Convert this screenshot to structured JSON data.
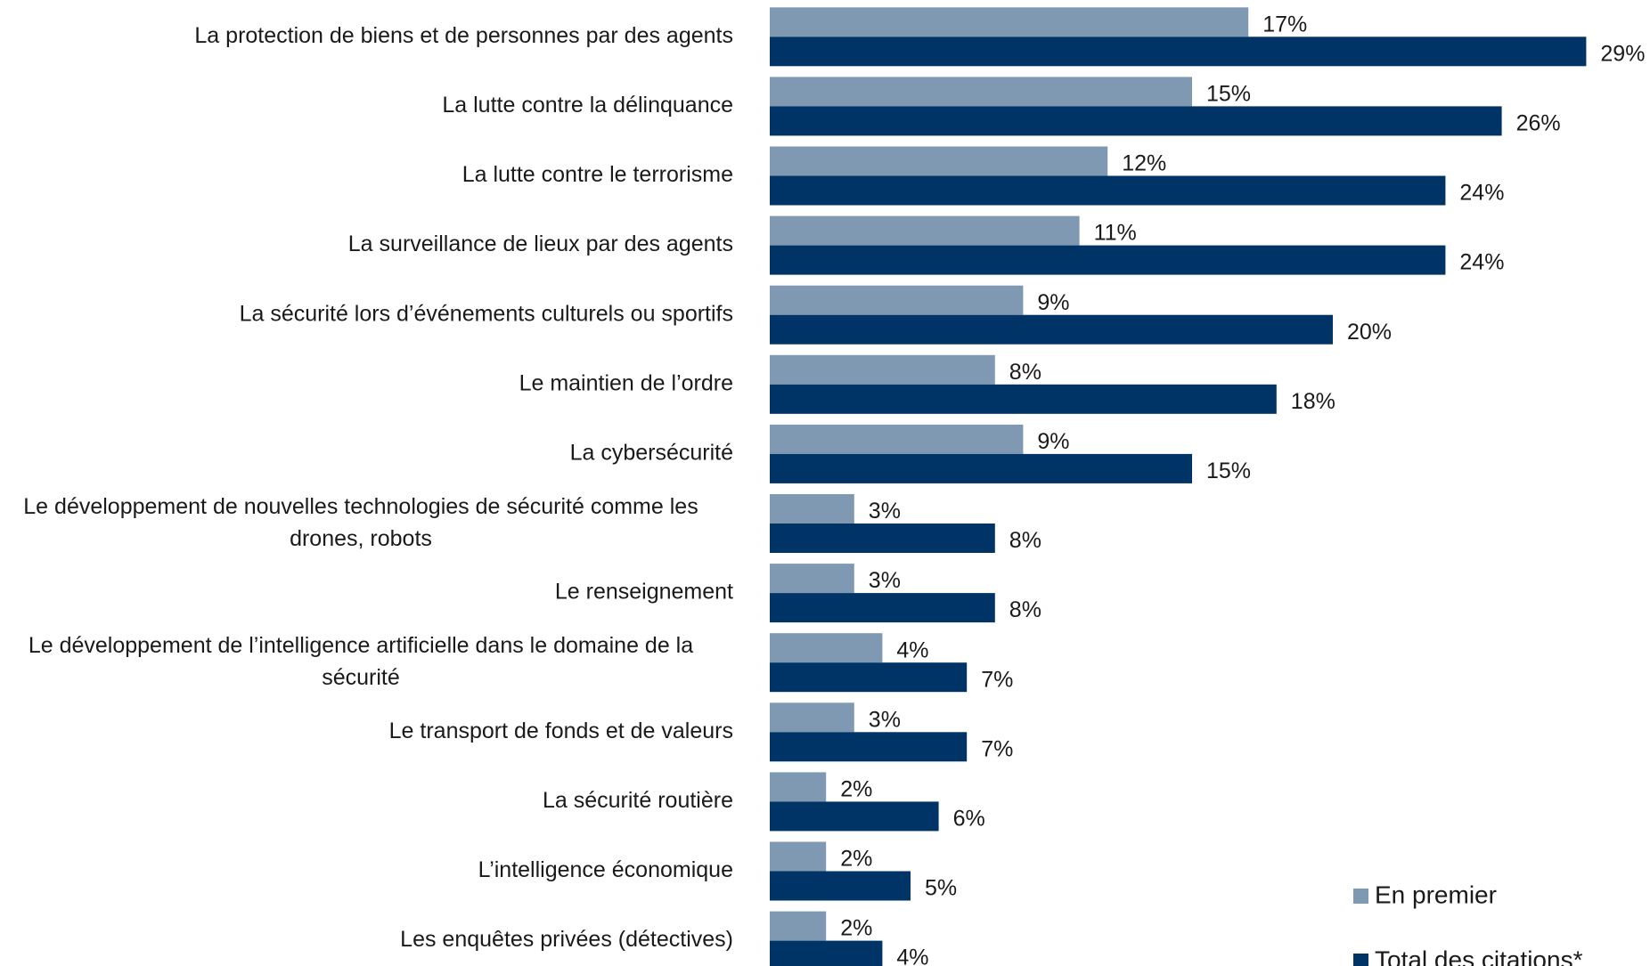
{
  "chart_data": {
    "type": "hbar",
    "categories": [
      "La protection de biens et de personnes par des agents",
      "La lutte contre la délinquance",
      "La lutte contre le terrorisme",
      "La surveillance de lieux par des agents",
      "La sécurité lors d’événements culturels ou sportifs",
      "Le maintien de l’ordre",
      "La cybersécurité",
      "Le développement de nouvelles technologies de sécurité comme les drones, robots",
      "Le renseignement",
      "Le développement de l’intelligence artificielle dans le domaine de la sécurité",
      "Le transport de fonds et de valeurs",
      "La sécurité routière",
      "L’intelligence économique",
      "Les enquêtes privées (détectives)"
    ],
    "series": [
      {
        "name": "En premier",
        "color": "#7f99b2",
        "values": [
          17,
          15,
          12,
          11,
          9,
          8,
          9,
          3,
          3,
          4,
          3,
          2,
          2,
          2
        ],
        "value_labels": [
          "17%",
          "15%",
          "12%",
          "11%",
          "9%",
          "8%",
          "9%",
          "3%",
          "3%",
          "4%",
          "3%",
          "2%",
          "2%",
          "2%"
        ]
      },
      {
        "name": "Total des citations*",
        "color": "#003366",
        "values": [
          29,
          26,
          24,
          24,
          20,
          18,
          15,
          8,
          8,
          7,
          7,
          6,
          5,
          4
        ],
        "value_labels": [
          "29%",
          "26%",
          "24%",
          "24%",
          "20%",
          "18%",
          "15%",
          "8%",
          "8%",
          "7%",
          "7%",
          "6%",
          "5%",
          "4%"
        ]
      }
    ],
    "legend": "bottom-right"
  }
}
